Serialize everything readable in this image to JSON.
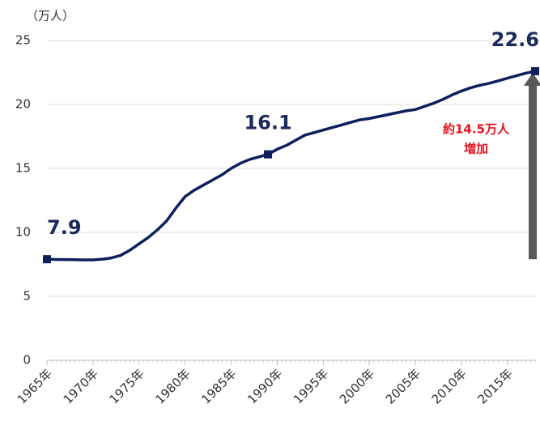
{
  "chart_data": {
    "type": "line",
    "y_axis_label": "（万人）",
    "x": [
      1965,
      1966,
      1967,
      1968,
      1969,
      1970,
      1971,
      1972,
      1973,
      1974,
      1975,
      1976,
      1977,
      1978,
      1979,
      1980,
      1981,
      1982,
      1983,
      1984,
      1985,
      1986,
      1987,
      1988,
      1989,
      1990,
      1991,
      1992,
      1993,
      1994,
      1995,
      1996,
      1997,
      1998,
      1999,
      2000,
      2001,
      2002,
      2003,
      2004,
      2005,
      2006,
      2007,
      2008,
      2009,
      2010,
      2011,
      2012,
      2013,
      2014,
      2015,
      2016,
      2017,
      2018
    ],
    "values": [
      7.9,
      7.88,
      7.87,
      7.86,
      7.85,
      7.85,
      7.9,
      8.0,
      8.2,
      8.6,
      9.1,
      9.6,
      10.2,
      10.9,
      11.9,
      12.8,
      13.3,
      13.7,
      14.1,
      14.5,
      15.0,
      15.4,
      15.7,
      15.9,
      16.1,
      16.5,
      16.8,
      17.2,
      17.6,
      17.8,
      18.0,
      18.2,
      18.4,
      18.6,
      18.8,
      18.9,
      19.05,
      19.2,
      19.35,
      19.5,
      19.6,
      19.85,
      20.1,
      20.4,
      20.75,
      21.05,
      21.3,
      21.5,
      21.65,
      21.85,
      22.05,
      22.25,
      22.45,
      22.6
    ],
    "color": "#0d1f5c",
    "marked_points": [
      0,
      24,
      53
    ],
    "xlim": [
      1965,
      2018
    ],
    "xticks": [
      {
        "value": 1965,
        "label": "1965年"
      },
      {
        "value": 1970,
        "label": "1970年"
      },
      {
        "value": 1975,
        "label": "1975年"
      },
      {
        "value": 1980,
        "label": "1980年"
      },
      {
        "value": 1985,
        "label": "1985年"
      },
      {
        "value": 1990,
        "label": "1990年"
      },
      {
        "value": 1995,
        "label": "1995年"
      },
      {
        "value": 2000,
        "label": "2000年"
      },
      {
        "value": 2005,
        "label": "2005年"
      },
      {
        "value": 2010,
        "label": "2010年"
      },
      {
        "value": 2015,
        "label": "2015年"
      }
    ],
    "ylim": [
      0,
      25
    ],
    "yticks": [
      0,
      5,
      10,
      15,
      20,
      25
    ],
    "grid": true,
    "annotation": [
      "約14.5万人",
      "増加"
    ]
  }
}
